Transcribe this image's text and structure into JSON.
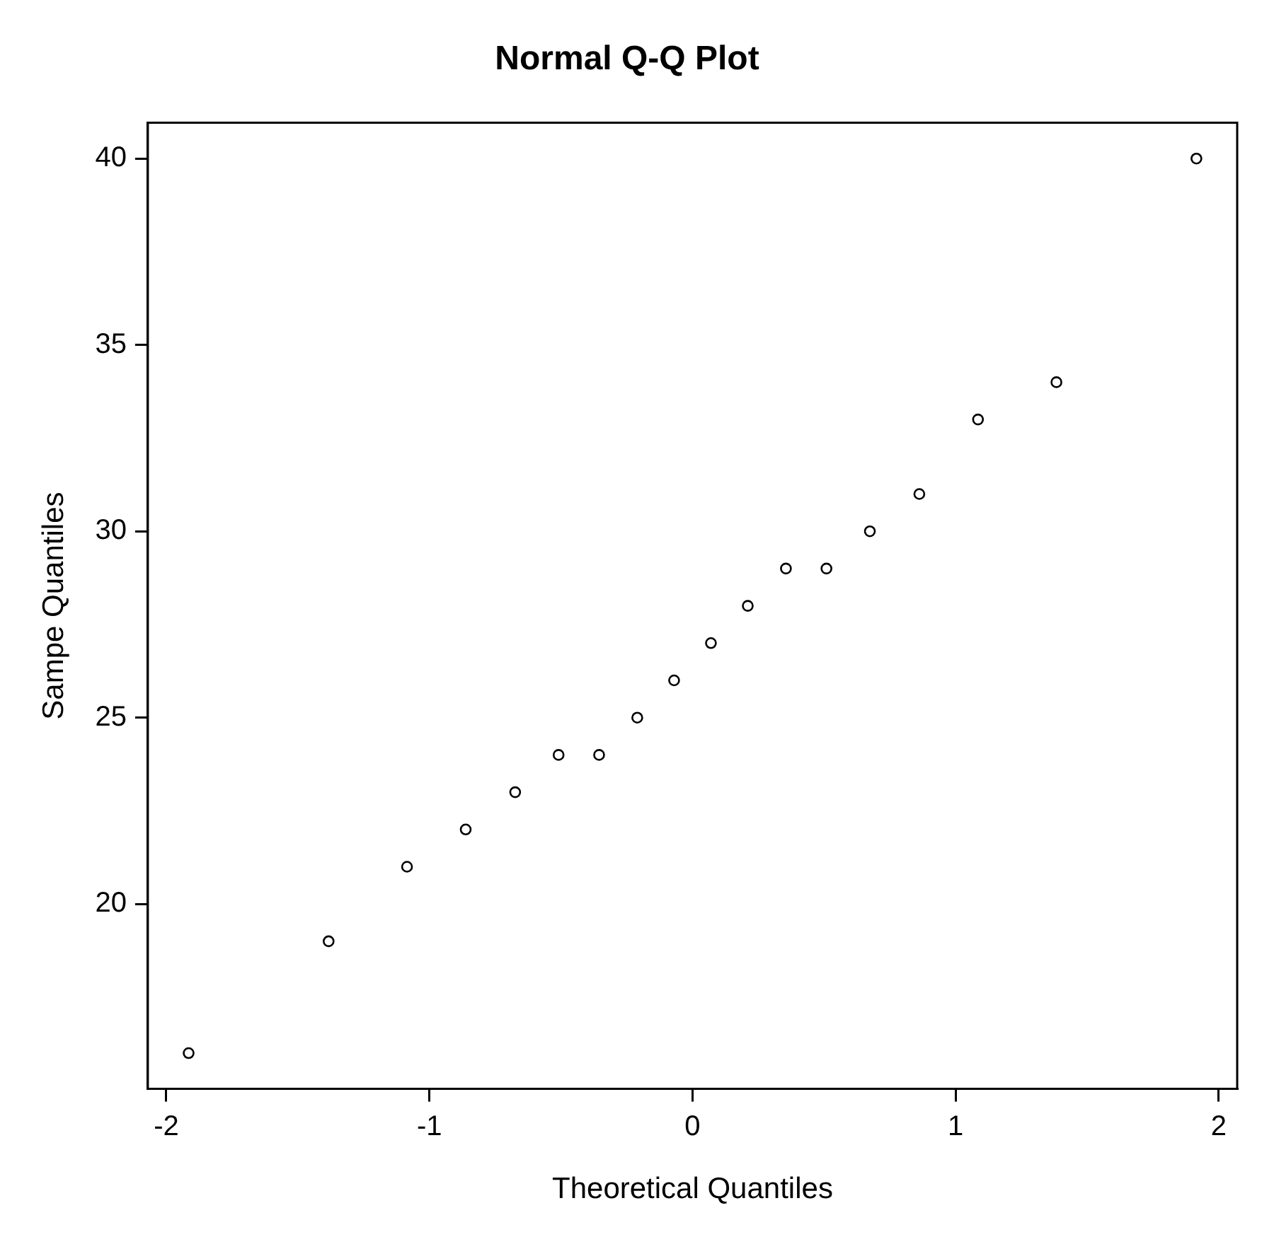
{
  "chart_data": {
    "type": "scatter",
    "title": "Normal Q-Q Plot",
    "xlabel": "Theoretical Quantiles",
    "ylabel": "Sampe Quantiles",
    "x": [
      -1.915,
      -1.383,
      -1.085,
      -0.862,
      -0.674,
      -0.509,
      -0.355,
      -0.21,
      -0.07,
      0.07,
      0.21,
      0.355,
      0.509,
      0.674,
      0.862,
      1.085,
      1.383,
      1.915
    ],
    "values": [
      16,
      19,
      21,
      22,
      23,
      24,
      24,
      25,
      26,
      27,
      28,
      29,
      29,
      30,
      31,
      33,
      34,
      40
    ],
    "color": "#000000",
    "marker": "circle",
    "grid": false,
    "xlim": [
      -2.07,
      2.07
    ],
    "ylim": [
      15.04,
      40.96
    ],
    "xticks": [
      -2,
      -1,
      0,
      1,
      2
    ],
    "yticks": [
      20,
      25,
      30,
      35,
      40
    ]
  }
}
